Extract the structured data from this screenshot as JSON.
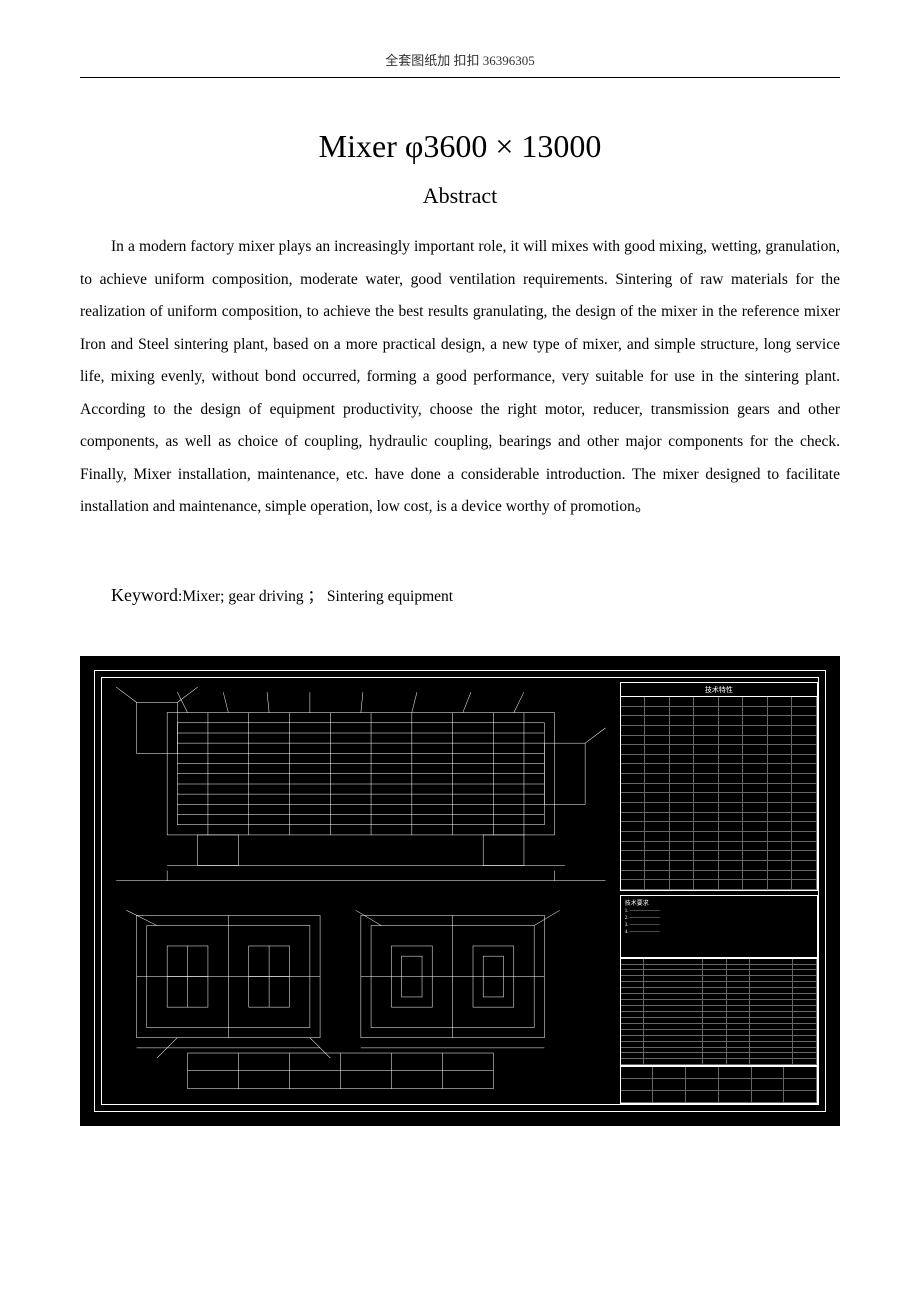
{
  "header": {
    "text": "全套图纸加 扣扣 36396305"
  },
  "title": "Mixer φ3600 × 13000",
  "subtitle": "Abstract",
  "abstract": "In a modern factory mixer plays an increasingly important role, it will mixes with good mixing, wetting, granulation, to achieve uniform composition, moderate water, good ventilation requirements. Sintering of raw materials for the realization of uniform composition, to achieve the best results granulating, the design of the mixer in the reference mixer Iron and Steel sintering plant, based on a more practical design, a new type of mixer, and simple structure, long service life, mixing evenly, without bond occurred, forming a good performance, very suitable for use in the sintering plant. According to the design of equipment productivity, choose the right motor, reducer, transmission gears and other components, as well as choice of coupling, hydraulic coupling, bearings and other major components for the check. Finally, Mixer installation,   maintenance, etc. have done a considerable introduction. The mixer designed to facilitate installation and maintenance, simple operation, low cost,   is a device worthy of promotion。",
  "keyword": {
    "label": "Keyword",
    "value": ":Mixer; gear driving ； Sintering equipment"
  },
  "blueprint": {
    "background_color": "#000000",
    "line_color": "#ffffff",
    "title_top_right": "技术特性",
    "parts_table_rows": 20,
    "parts_table_cols": 8
  }
}
